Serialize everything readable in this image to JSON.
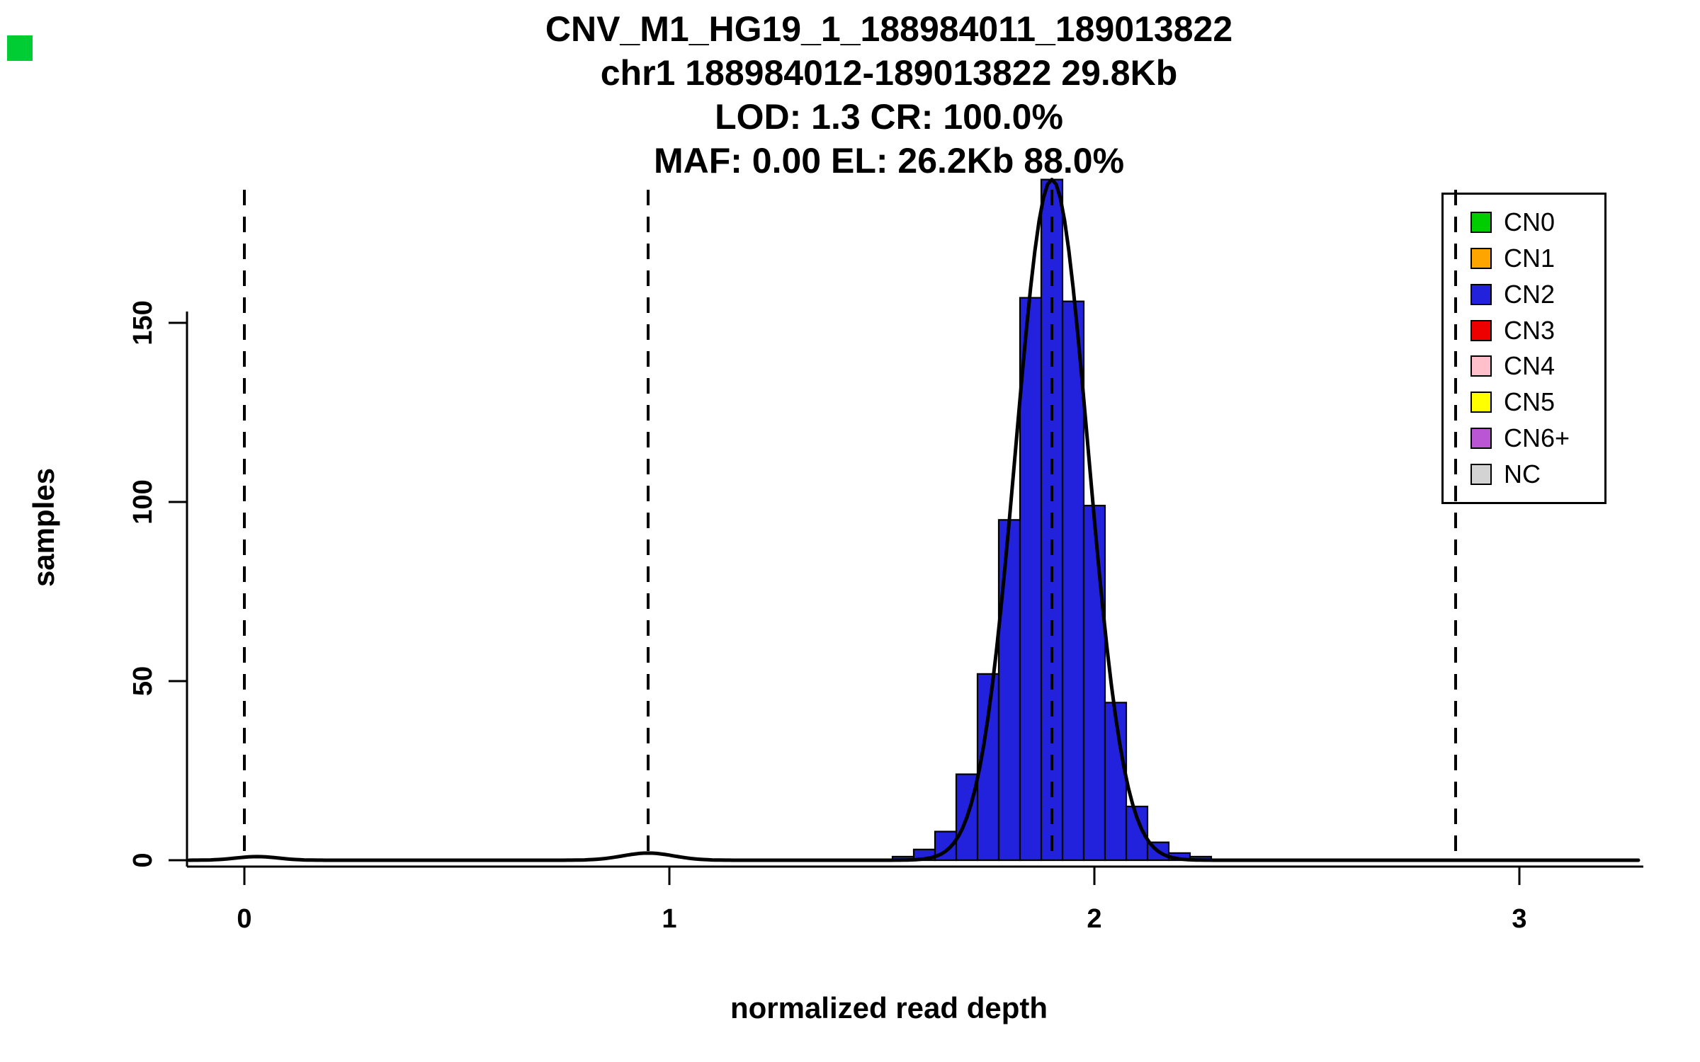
{
  "corner_marker": {
    "color": "#00CC33"
  },
  "chart_data": {
    "type": "bar",
    "subtype": "histogram-with-gaussian-fit",
    "title_lines": [
      "CNV_M1_HG19_1_188984011_189013822",
      "chr1 188984012-189013822 29.8Kb",
      "LOD: 1.3 CR: 100.0%",
      "MAF: 0.00 EL: 26.2Kb 88.0%"
    ],
    "xlabel": "normalized read depth",
    "ylabel": "samples",
    "xlim": [
      -0.13,
      3.28
    ],
    "ylim": [
      0,
      192
    ],
    "x_ticks": [
      0,
      1,
      2,
      3
    ],
    "y_ticks": [
      0,
      50,
      100,
      150
    ],
    "grid": false,
    "histogram": {
      "series_name": "CN2",
      "bar_color": "#2222DD",
      "bar_border_color": "#000000",
      "bin_width": 0.05,
      "bins": [
        {
          "x_left": 1.525,
          "count": 1
        },
        {
          "x_left": 1.575,
          "count": 3
        },
        {
          "x_left": 1.625,
          "count": 8
        },
        {
          "x_left": 1.675,
          "count": 24
        },
        {
          "x_left": 1.725,
          "count": 52
        },
        {
          "x_left": 1.775,
          "count": 95
        },
        {
          "x_left": 1.825,
          "count": 157
        },
        {
          "x_left": 1.875,
          "count": 190
        },
        {
          "x_left": 1.925,
          "count": 156
        },
        {
          "x_left": 1.975,
          "count": 99
        },
        {
          "x_left": 2.025,
          "count": 44
        },
        {
          "x_left": 2.075,
          "count": 15
        },
        {
          "x_left": 2.125,
          "count": 5
        },
        {
          "x_left": 2.175,
          "count": 2
        },
        {
          "x_left": 2.225,
          "count": 1
        }
      ]
    },
    "fit_curve": {
      "color": "#000000",
      "components": [
        {
          "mean": 1.9,
          "sd": 0.085,
          "amplitude": 190
        },
        {
          "mean": 0.95,
          "sd": 0.06,
          "amplitude": 2
        },
        {
          "mean": 0.03,
          "sd": 0.05,
          "amplitude": 1
        }
      ]
    },
    "dashed_guides": {
      "style": "dashed",
      "color": "#000000",
      "x_values": [
        0,
        0.95,
        1.9,
        2.85
      ]
    },
    "legend": {
      "position": "top-right",
      "items": [
        {
          "label": "CN0",
          "color": "#00CD00"
        },
        {
          "label": "CN1",
          "color": "#FFA500"
        },
        {
          "label": "CN2",
          "color": "#2222DD"
        },
        {
          "label": "CN3",
          "color": "#EE0000"
        },
        {
          "label": "CN4",
          "color": "#FFC0CB"
        },
        {
          "label": "CN5",
          "color": "#FFFF00"
        },
        {
          "label": "CN6+",
          "color": "#BA55D3"
        },
        {
          "label": "NC",
          "color": "#D3D3D3"
        }
      ]
    }
  }
}
